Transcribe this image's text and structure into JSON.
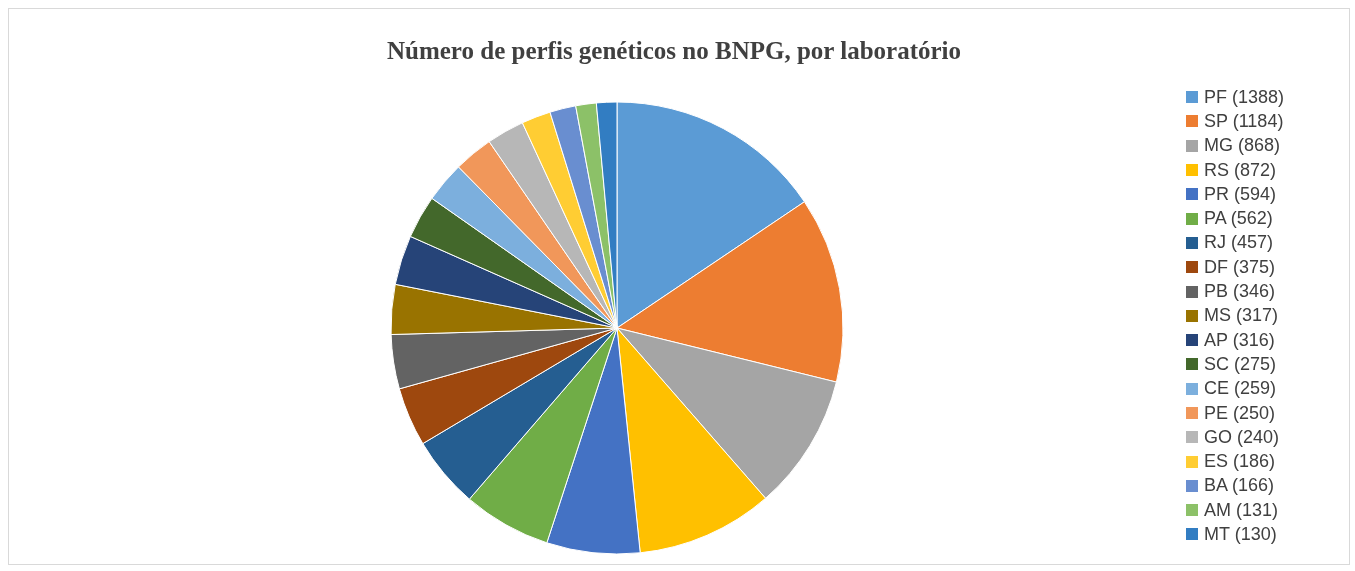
{
  "chart_data": {
    "type": "pie",
    "title": "Número de perfis genéticos no BNPG, por laboratório",
    "categories": [
      "PF (1388)",
      "SP (1184)",
      "MG (868)",
      "RS (872)",
      "PR (594)",
      "PA (562)",
      "RJ (457)",
      "DF (375)",
      "PB (346)",
      "MS (317)",
      "AP (316)",
      "SC (275)",
      "CE (259)",
      "PE (250)",
      "GO (240)",
      "ES (186)",
      "BA (166)",
      "AM (131)",
      "MT (130)"
    ],
    "values": [
      1388,
      1184,
      868,
      872,
      594,
      562,
      457,
      375,
      346,
      317,
      316,
      275,
      259,
      250,
      240,
      186,
      166,
      131,
      130
    ],
    "colors": [
      "#5b9bd5",
      "#ed7d31",
      "#a5a5a5",
      "#ffc000",
      "#4472c4",
      "#70ad47",
      "#255e91",
      "#9e480e",
      "#636363",
      "#997300",
      "#264478",
      "#43682b",
      "#7cafdd",
      "#f1975a",
      "#b7b7b7",
      "#ffcd33",
      "#698ed0",
      "#8cc168",
      "#327dc2"
    ],
    "legend": "right"
  }
}
